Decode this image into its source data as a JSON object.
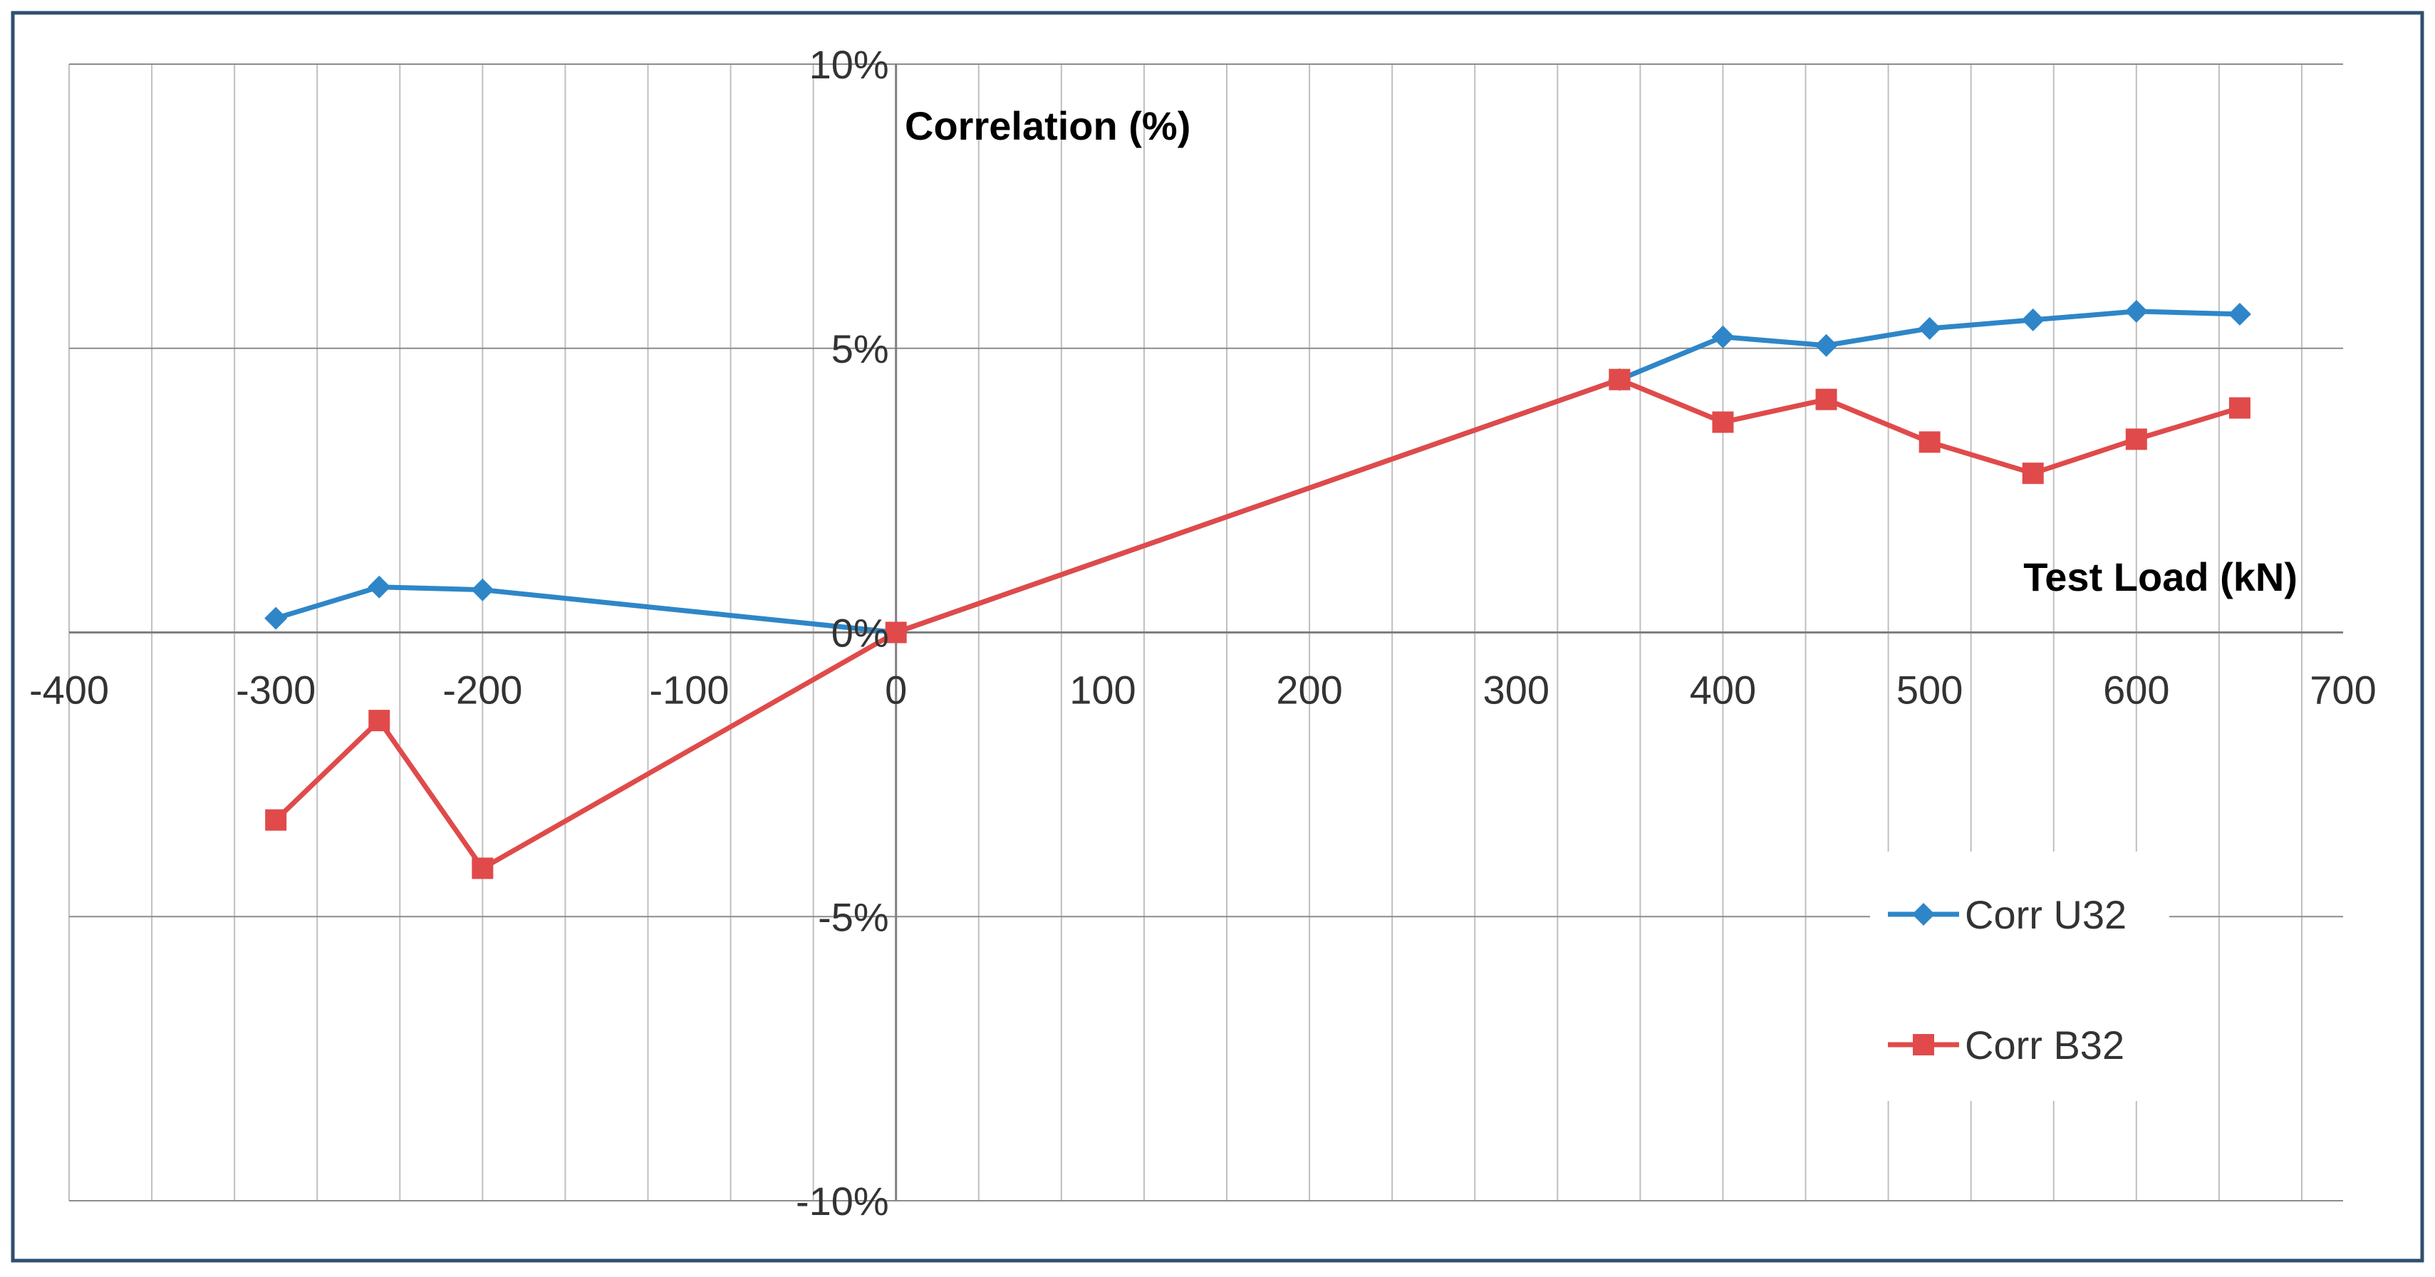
{
  "chart_data": {
    "type": "line",
    "ylabel": "Correlation  (%)",
    "xlabel": "Test Load (kN)",
    "xlim": [
      -400,
      700
    ],
    "ylim": [
      -10,
      10
    ],
    "x_ticks": [
      "-400",
      "-300",
      "-200",
      "-100",
      "0",
      "100",
      "200",
      "300",
      "400",
      "500",
      "600",
      "700"
    ],
    "y_ticks": [
      "10%",
      "5%",
      "0%",
      "-5%",
      "-10%"
    ],
    "x_minor_step": 40,
    "grid": true,
    "legend_position": "bottom-right",
    "series": [
      {
        "name": "Corr U32",
        "color": "#2E86C8",
        "marker": "diamond",
        "x": [
          -300,
          -250,
          -200,
          0,
          350,
          400,
          450,
          500,
          550,
          600,
          650
        ],
        "y": [
          0.25,
          0.8,
          0.75,
          0.0,
          4.45,
          5.2,
          5.05,
          5.35,
          5.5,
          5.65,
          5.6
        ]
      },
      {
        "name": "Corr B32",
        "color": "#E04A4A",
        "marker": "square",
        "x": [
          -300,
          -250,
          -200,
          0,
          350,
          400,
          450,
          500,
          550,
          600,
          650
        ],
        "y": [
          -3.3,
          -1.55,
          -4.15,
          0.0,
          4.45,
          3.7,
          4.1,
          3.35,
          2.8,
          3.4,
          3.95
        ]
      }
    ]
  }
}
